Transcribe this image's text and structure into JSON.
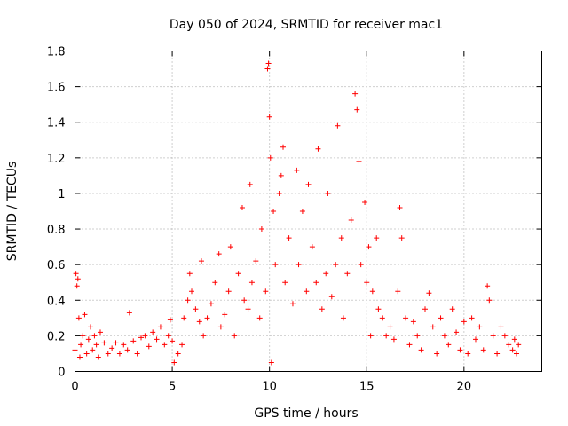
{
  "chart_data": {
    "type": "scatter",
    "title": "Day 050 of 2024, SRMTID for receiver mac1",
    "xlabel": "GPS time / hours",
    "ylabel": "SRMTID / TECUs",
    "xlim": [
      0,
      24
    ],
    "ylim": [
      0,
      1.8
    ],
    "xticks": [
      0,
      5,
      10,
      15,
      20
    ],
    "xtick_labels": [
      "0",
      "5",
      "10",
      "15",
      "20"
    ],
    "yticks": [
      0,
      0.2,
      0.4,
      0.6,
      0.8,
      1,
      1.2,
      1.4,
      1.6,
      1.8
    ],
    "ytick_labels": [
      "0",
      "0.2",
      "0.4",
      "0.6",
      "0.8",
      "1",
      "1.2",
      "1.4",
      "1.6",
      "1.8"
    ],
    "grid": true,
    "marker": "+",
    "color": "#ff0000",
    "series": [
      {
        "name": "SRMTID",
        "points": [
          [
            0.0,
            0.12
          ],
          [
            0.05,
            0.55
          ],
          [
            0.1,
            0.48
          ],
          [
            0.15,
            0.52
          ],
          [
            0.2,
            0.3
          ],
          [
            0.25,
            0.08
          ],
          [
            0.3,
            0.15
          ],
          [
            0.4,
            0.2
          ],
          [
            0.5,
            0.32
          ],
          [
            0.6,
            0.1
          ],
          [
            0.7,
            0.18
          ],
          [
            0.8,
            0.25
          ],
          [
            0.9,
            0.12
          ],
          [
            1.0,
            0.2
          ],
          [
            1.1,
            0.15
          ],
          [
            1.2,
            0.08
          ],
          [
            1.3,
            0.22
          ],
          [
            1.5,
            0.16
          ],
          [
            1.7,
            0.1
          ],
          [
            1.9,
            0.13
          ],
          [
            2.1,
            0.16
          ],
          [
            2.3,
            0.1
          ],
          [
            2.5,
            0.15
          ],
          [
            2.7,
            0.12
          ],
          [
            2.8,
            0.33
          ],
          [
            3.0,
            0.17
          ],
          [
            3.2,
            0.1
          ],
          [
            3.4,
            0.19
          ],
          [
            3.6,
            0.2
          ],
          [
            3.8,
            0.14
          ],
          [
            4.0,
            0.22
          ],
          [
            4.2,
            0.18
          ],
          [
            4.4,
            0.25
          ],
          [
            4.6,
            0.15
          ],
          [
            4.8,
            0.2
          ],
          [
            4.9,
            0.29
          ],
          [
            5.0,
            0.17
          ],
          [
            5.1,
            0.05
          ],
          [
            5.3,
            0.1
          ],
          [
            5.5,
            0.15
          ],
          [
            5.6,
            0.3
          ],
          [
            5.8,
            0.4
          ],
          [
            5.9,
            0.55
          ],
          [
            6.0,
            0.45
          ],
          [
            6.2,
            0.35
          ],
          [
            6.4,
            0.28
          ],
          [
            6.5,
            0.62
          ],
          [
            6.6,
            0.2
          ],
          [
            6.8,
            0.3
          ],
          [
            7.0,
            0.38
          ],
          [
            7.2,
            0.5
          ],
          [
            7.4,
            0.66
          ],
          [
            7.5,
            0.25
          ],
          [
            7.7,
            0.32
          ],
          [
            7.9,
            0.45
          ],
          [
            8.0,
            0.7
          ],
          [
            8.2,
            0.2
          ],
          [
            8.4,
            0.55
          ],
          [
            8.6,
            0.92
          ],
          [
            8.7,
            0.4
          ],
          [
            8.9,
            0.35
          ],
          [
            9.0,
            1.05
          ],
          [
            9.1,
            0.5
          ],
          [
            9.3,
            0.62
          ],
          [
            9.5,
            0.3
          ],
          [
            9.6,
            0.8
          ],
          [
            9.8,
            0.45
          ],
          [
            9.9,
            1.7
          ],
          [
            9.95,
            1.73
          ],
          [
            10.0,
            1.43
          ],
          [
            10.05,
            1.2
          ],
          [
            10.1,
            0.05
          ],
          [
            10.2,
            0.9
          ],
          [
            10.3,
            0.6
          ],
          [
            10.5,
            1.0
          ],
          [
            10.6,
            1.1
          ],
          [
            10.7,
            1.26
          ],
          [
            10.8,
            0.5
          ],
          [
            11.0,
            0.75
          ],
          [
            11.2,
            0.38
          ],
          [
            11.4,
            1.13
          ],
          [
            11.5,
            0.6
          ],
          [
            11.7,
            0.9
          ],
          [
            11.9,
            0.45
          ],
          [
            12.0,
            1.05
          ],
          [
            12.2,
            0.7
          ],
          [
            12.4,
            0.5
          ],
          [
            12.5,
            1.25
          ],
          [
            12.7,
            0.35
          ],
          [
            12.9,
            0.55
          ],
          [
            13.0,
            1.0
          ],
          [
            13.2,
            0.42
          ],
          [
            13.4,
            0.6
          ],
          [
            13.5,
            1.38
          ],
          [
            13.7,
            0.75
          ],
          [
            13.8,
            0.3
          ],
          [
            14.0,
            0.55
          ],
          [
            14.2,
            0.85
          ],
          [
            14.4,
            1.56
          ],
          [
            14.5,
            1.47
          ],
          [
            14.6,
            1.18
          ],
          [
            14.7,
            0.6
          ],
          [
            14.9,
            0.95
          ],
          [
            15.0,
            0.5
          ],
          [
            15.1,
            0.7
          ],
          [
            15.2,
            0.2
          ],
          [
            15.3,
            0.45
          ],
          [
            15.5,
            0.75
          ],
          [
            15.6,
            0.35
          ],
          [
            15.8,
            0.3
          ],
          [
            16.0,
            0.2
          ],
          [
            16.2,
            0.25
          ],
          [
            16.4,
            0.18
          ],
          [
            16.6,
            0.45
          ],
          [
            16.7,
            0.92
          ],
          [
            16.8,
            0.75
          ],
          [
            17.0,
            0.3
          ],
          [
            17.2,
            0.15
          ],
          [
            17.4,
            0.28
          ],
          [
            17.6,
            0.2
          ],
          [
            17.8,
            0.12
          ],
          [
            18.0,
            0.35
          ],
          [
            18.2,
            0.44
          ],
          [
            18.4,
            0.25
          ],
          [
            18.6,
            0.1
          ],
          [
            18.8,
            0.3
          ],
          [
            19.0,
            0.2
          ],
          [
            19.2,
            0.15
          ],
          [
            19.4,
            0.35
          ],
          [
            19.6,
            0.22
          ],
          [
            19.8,
            0.12
          ],
          [
            20.0,
            0.28
          ],
          [
            20.2,
            0.1
          ],
          [
            20.4,
            0.3
          ],
          [
            20.6,
            0.18
          ],
          [
            20.8,
            0.25
          ],
          [
            21.0,
            0.12
          ],
          [
            21.2,
            0.48
          ],
          [
            21.3,
            0.4
          ],
          [
            21.5,
            0.2
          ],
          [
            21.7,
            0.1
          ],
          [
            21.9,
            0.25
          ],
          [
            22.1,
            0.2
          ],
          [
            22.3,
            0.15
          ],
          [
            22.5,
            0.12
          ],
          [
            22.6,
            0.18
          ],
          [
            22.7,
            0.1
          ],
          [
            22.8,
            0.15
          ]
        ]
      }
    ]
  }
}
